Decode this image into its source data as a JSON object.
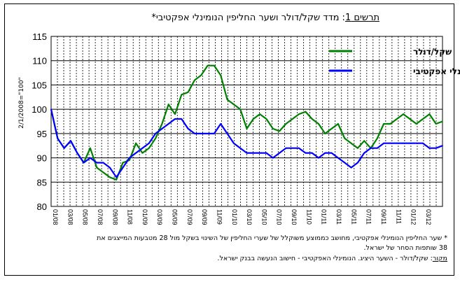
{
  "chart_data": {
    "type": "line",
    "title_prefix": "תרשים 1",
    "title_rest": ": מדד שקל/דולר ושער החליפין הנומינלי אפקטיבי*",
    "ylabel": "2/1/2008=\"100\"",
    "ylim": [
      80,
      115
    ],
    "yticks": [
      80,
      85,
      90,
      95,
      100,
      105,
      110,
      115
    ],
    "xticks": [
      "01/08",
      "03/08",
      "05/08",
      "07/08",
      "09/08",
      "11/08",
      "01/09",
      "03/09",
      "05/09",
      "07/09",
      "09/09",
      "11/09",
      "01/10",
      "03/10",
      "05/10",
      "07/10",
      "09/10",
      "11/10",
      "01/11",
      "03/11",
      "05/11",
      "07/11",
      "09/11",
      "11/11",
      "01/12",
      "03/12"
    ],
    "grid": true,
    "legend_position": "top-right",
    "series": [
      {
        "name": "שקל/דולר",
        "color": "#008000",
        "points": [
          [
            0,
            100
          ],
          [
            0.5,
            94
          ],
          [
            1,
            92
          ],
          [
            1.5,
            93.5
          ],
          [
            2,
            91
          ],
          [
            2.5,
            89
          ],
          [
            3,
            92
          ],
          [
            3.5,
            88
          ],
          [
            4,
            87
          ],
          [
            4.5,
            86
          ],
          [
            5,
            85.5
          ],
          [
            5.5,
            89
          ],
          [
            6,
            89.5
          ],
          [
            6.5,
            93
          ],
          [
            7,
            91
          ],
          [
            7.5,
            92
          ],
          [
            8,
            94
          ],
          [
            8.5,
            97
          ],
          [
            9,
            101
          ],
          [
            9.5,
            99
          ],
          [
            10,
            103
          ],
          [
            10.5,
            103.5
          ],
          [
            11,
            106
          ],
          [
            11.5,
            107
          ],
          [
            12,
            109
          ],
          [
            12.5,
            109
          ],
          [
            13,
            107
          ],
          [
            13.5,
            102
          ],
          [
            14,
            101
          ],
          [
            14.5,
            100
          ],
          [
            15,
            96
          ],
          [
            15.5,
            98
          ],
          [
            16,
            99
          ],
          [
            16.5,
            98
          ],
          [
            17,
            96
          ],
          [
            17.5,
            95.5
          ],
          [
            18,
            97
          ],
          [
            18.5,
            98
          ],
          [
            19,
            99
          ],
          [
            19.5,
            99.5
          ],
          [
            20,
            98
          ],
          [
            20.5,
            97
          ],
          [
            21,
            95
          ],
          [
            21.5,
            96
          ],
          [
            22,
            97
          ],
          [
            22.5,
            94
          ],
          [
            23,
            93
          ],
          [
            23.5,
            92
          ],
          [
            24,
            93.5
          ],
          [
            24.5,
            92
          ],
          [
            25,
            94
          ],
          [
            25.5,
            97
          ],
          [
            26,
            97
          ],
          [
            26.5,
            98
          ],
          [
            27,
            99
          ],
          [
            27.5,
            98
          ],
          [
            28,
            97
          ],
          [
            28.5,
            98
          ],
          [
            29,
            99
          ],
          [
            29.5,
            97
          ],
          [
            30,
            97.5
          ]
        ]
      },
      {
        "name": "נומינלי אפקטיבי",
        "color": "#0000ff",
        "points": [
          [
            0,
            100
          ],
          [
            0.5,
            94
          ],
          [
            1,
            92
          ],
          [
            1.5,
            93.5
          ],
          [
            2,
            91
          ],
          [
            2.5,
            89
          ],
          [
            3,
            90
          ],
          [
            3.5,
            89
          ],
          [
            4,
            89
          ],
          [
            4.5,
            88
          ],
          [
            5,
            86
          ],
          [
            5.5,
            88
          ],
          [
            6,
            90
          ],
          [
            6.5,
            91
          ],
          [
            7,
            92
          ],
          [
            7.5,
            93
          ],
          [
            8,
            95
          ],
          [
            8.5,
            96
          ],
          [
            9,
            97
          ],
          [
            9.5,
            98
          ],
          [
            10,
            98
          ],
          [
            10.5,
            96
          ],
          [
            11,
            95
          ],
          [
            11.5,
            95
          ],
          [
            12,
            95
          ],
          [
            12.5,
            95
          ],
          [
            13,
            97
          ],
          [
            13.5,
            95
          ],
          [
            14,
            93
          ],
          [
            14.5,
            92
          ],
          [
            15,
            91
          ],
          [
            15.5,
            91
          ],
          [
            16,
            91
          ],
          [
            16.5,
            91
          ],
          [
            17,
            90
          ],
          [
            17.5,
            91
          ],
          [
            18,
            92
          ],
          [
            18.5,
            92
          ],
          [
            19,
            92
          ],
          [
            19.5,
            91
          ],
          [
            20,
            91
          ],
          [
            20.5,
            90
          ],
          [
            21,
            91
          ],
          [
            21.5,
            91
          ],
          [
            22,
            90
          ],
          [
            22.5,
            89
          ],
          [
            23,
            88
          ],
          [
            23.5,
            89
          ],
          [
            24,
            91
          ],
          [
            24.5,
            92
          ],
          [
            25,
            92
          ],
          [
            25.5,
            93
          ],
          [
            26,
            93
          ],
          [
            26.5,
            93
          ],
          [
            27,
            93
          ],
          [
            27.5,
            93
          ],
          [
            28,
            93
          ],
          [
            28.5,
            93
          ],
          [
            29,
            92
          ],
          [
            29.5,
            92
          ],
          [
            30,
            92.5
          ]
        ]
      }
    ]
  },
  "notes": {
    "line1": "* שער החליפין הנומינלי אפקטיבי, מחושב כממוצע משוקלל של שערי החליפין של השינוי בשקל מול 28 מטבעות המייצגים את",
    "line2": "38 שותפות הסחר של ישראל.",
    "source_label": "מקור",
    "source_text": ": שקל/דולר - השער היציג. הנומינלי האפקטיבי - חישוב הנעשה בבנק ישראל."
  }
}
